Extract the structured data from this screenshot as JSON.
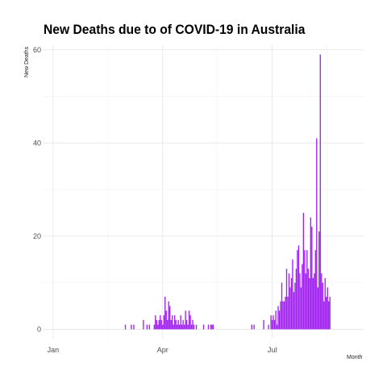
{
  "chart_data": {
    "type": "bar",
    "title": "New Deaths due to of COVID-19 in Australia",
    "xlabel": "Month",
    "ylabel": "New Deaths",
    "ylim": [
      0,
      61
    ],
    "yticks": [
      0,
      20,
      40,
      60
    ],
    "xticks": [
      {
        "label": "Jan",
        "day": 0
      },
      {
        "label": "Apr",
        "day": 91
      },
      {
        "label": "Jul",
        "day": 182
      }
    ],
    "x_start": "2020-01-01",
    "bar_color": "#a020f0",
    "grid": true,
    "series": [
      {
        "values": [
          {
            "day": 60,
            "value": 1
          },
          {
            "day": 65,
            "value": 1
          },
          {
            "day": 67,
            "value": 1
          },
          {
            "day": 75,
            "value": 2
          },
          {
            "day": 78,
            "value": 1
          },
          {
            "day": 80,
            "value": 1
          },
          {
            "day": 84,
            "value": 1
          },
          {
            "day": 85,
            "value": 3
          },
          {
            "day": 86,
            "value": 2
          },
          {
            "day": 87,
            "value": 1
          },
          {
            "day": 88,
            "value": 2
          },
          {
            "day": 89,
            "value": 3
          },
          {
            "day": 90,
            "value": 2
          },
          {
            "day": 91,
            "value": 1
          },
          {
            "day": 92,
            "value": 3
          },
          {
            "day": 93,
            "value": 7
          },
          {
            "day": 94,
            "value": 4
          },
          {
            "day": 95,
            "value": 2
          },
          {
            "day": 96,
            "value": 6
          },
          {
            "day": 97,
            "value": 5
          },
          {
            "day": 98,
            "value": 2
          },
          {
            "day": 99,
            "value": 3
          },
          {
            "day": 100,
            "value": 1
          },
          {
            "day": 101,
            "value": 3
          },
          {
            "day": 102,
            "value": 2
          },
          {
            "day": 103,
            "value": 1
          },
          {
            "day": 104,
            "value": 2
          },
          {
            "day": 105,
            "value": 1
          },
          {
            "day": 106,
            "value": 3
          },
          {
            "day": 107,
            "value": 1
          },
          {
            "day": 108,
            "value": 2
          },
          {
            "day": 109,
            "value": 1
          },
          {
            "day": 110,
            "value": 4
          },
          {
            "day": 111,
            "value": 2
          },
          {
            "day": 112,
            "value": 1
          },
          {
            "day": 113,
            "value": 4
          },
          {
            "day": 114,
            "value": 3
          },
          {
            "day": 115,
            "value": 1
          },
          {
            "day": 116,
            "value": 2
          },
          {
            "day": 117,
            "value": 1
          },
          {
            "day": 119,
            "value": 1
          },
          {
            "day": 125,
            "value": 1
          },
          {
            "day": 129,
            "value": 1
          },
          {
            "day": 131,
            "value": 1
          },
          {
            "day": 132,
            "value": 1
          },
          {
            "day": 133,
            "value": 1
          },
          {
            "day": 165,
            "value": 1
          },
          {
            "day": 167,
            "value": 1
          },
          {
            "day": 175,
            "value": 2
          },
          {
            "day": 179,
            "value": 1
          },
          {
            "day": 181,
            "value": 3
          },
          {
            "day": 182,
            "value": 2
          },
          {
            "day": 183,
            "value": 3
          },
          {
            "day": 184,
            "value": 2
          },
          {
            "day": 185,
            "value": 4
          },
          {
            "day": 186,
            "value": 1
          },
          {
            "day": 187,
            "value": 5
          },
          {
            "day": 188,
            "value": 4
          },
          {
            "day": 189,
            "value": 6
          },
          {
            "day": 190,
            "value": 10
          },
          {
            "day": 191,
            "value": 6
          },
          {
            "day": 192,
            "value": 6
          },
          {
            "day": 193,
            "value": 7
          },
          {
            "day": 194,
            "value": 13
          },
          {
            "day": 195,
            "value": 7
          },
          {
            "day": 196,
            "value": 12
          },
          {
            "day": 197,
            "value": 9
          },
          {
            "day": 198,
            "value": 11
          },
          {
            "day": 199,
            "value": 15
          },
          {
            "day": 200,
            "value": 8
          },
          {
            "day": 201,
            "value": 10
          },
          {
            "day": 202,
            "value": 13
          },
          {
            "day": 203,
            "value": 17
          },
          {
            "day": 204,
            "value": 18
          },
          {
            "day": 205,
            "value": 12
          },
          {
            "day": 206,
            "value": 9
          },
          {
            "day": 207,
            "value": 14
          },
          {
            "day": 208,
            "value": 25
          },
          {
            "day": 209,
            "value": 17
          },
          {
            "day": 210,
            "value": 12
          },
          {
            "day": 211,
            "value": 17
          },
          {
            "day": 212,
            "value": 13
          },
          {
            "day": 213,
            "value": 11
          },
          {
            "day": 214,
            "value": 24
          },
          {
            "day": 215,
            "value": 22
          },
          {
            "day": 216,
            "value": 11
          },
          {
            "day": 217,
            "value": 12
          },
          {
            "day": 218,
            "value": 17
          },
          {
            "day": 219,
            "value": 41
          },
          {
            "day": 220,
            "value": 9
          },
          {
            "day": 221,
            "value": 21
          },
          {
            "day": 222,
            "value": 59
          },
          {
            "day": 223,
            "value": 12
          },
          {
            "day": 224,
            "value": 10
          },
          {
            "day": 225,
            "value": 6
          },
          {
            "day": 226,
            "value": 11
          },
          {
            "day": 227,
            "value": 7
          },
          {
            "day": 228,
            "value": 9
          },
          {
            "day": 229,
            "value": 6
          },
          {
            "day": 230,
            "value": 7
          }
        ]
      }
    ]
  }
}
